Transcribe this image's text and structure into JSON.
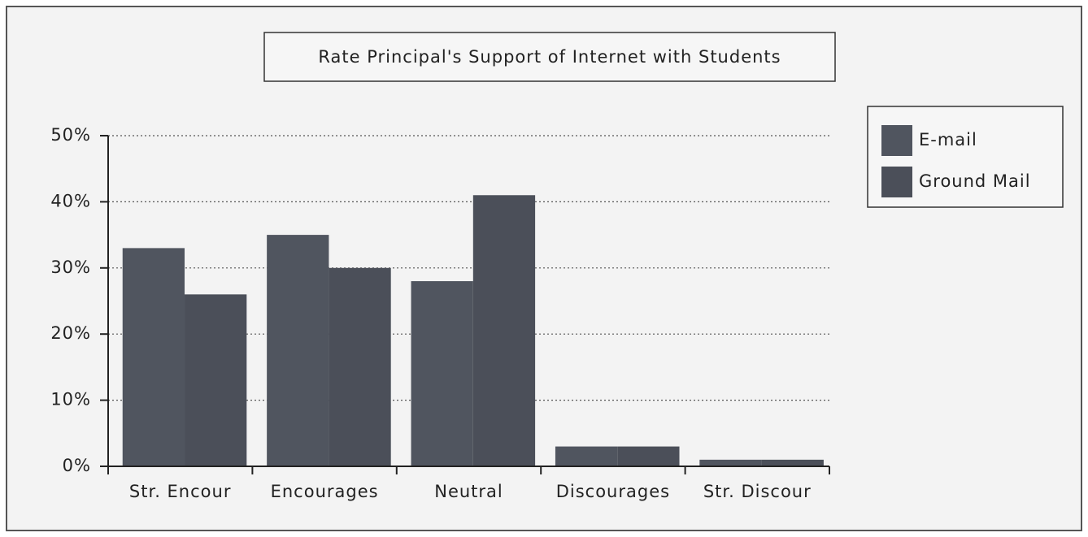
{
  "chart_data": {
    "type": "bar",
    "title": "Rate Principal's Support of Internet with Students",
    "categories": [
      "Str. Encour",
      "Encourages",
      "Neutral",
      "Discourages",
      "Str. Discour"
    ],
    "series": [
      {
        "name": "E-mail",
        "color": "#50555f",
        "values": [
          33,
          35,
          28,
          3,
          1
        ]
      },
      {
        "name": "Ground Mail",
        "color": "#4b4f59",
        "values": [
          26,
          30,
          41,
          3,
          1
        ]
      }
    ],
    "ylim": [
      0,
      50
    ],
    "yticks": [
      {
        "value": 0,
        "label": "0%"
      },
      {
        "value": 10,
        "label": "10%"
      },
      {
        "value": 20,
        "label": "20%"
      },
      {
        "value": 30,
        "label": "30%"
      },
      {
        "value": 40,
        "label": "40%"
      },
      {
        "value": 50,
        "label": "50%"
      }
    ],
    "grid": true,
    "legend": "right"
  }
}
